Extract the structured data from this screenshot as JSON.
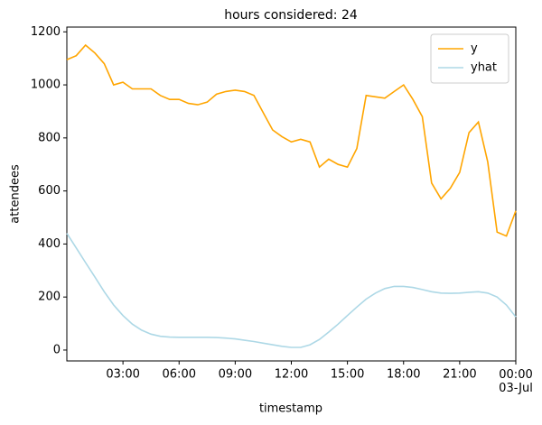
{
  "chart_data": {
    "type": "line",
    "title": "hours considered: 24",
    "x_label": "timestamp",
    "y_label": "attendees",
    "x": [
      0,
      0.5,
      1,
      1.5,
      2,
      2.5,
      3,
      3.5,
      4,
      4.5,
      5,
      5.5,
      6,
      6.5,
      7,
      7.5,
      8,
      8.5,
      9,
      9.5,
      10,
      10.5,
      11,
      11.5,
      12,
      12.5,
      13,
      13.5,
      14,
      14.5,
      15,
      15.5,
      16,
      16.5,
      17,
      17.5,
      18,
      18.5,
      19,
      19.5,
      20,
      20.5,
      21,
      21.5,
      22,
      22.5,
      23,
      23.5,
      24
    ],
    "series": [
      {
        "name": "y",
        "color": "#ffa500",
        "values": [
          1095,
          1110,
          1150,
          1120,
          1080,
          1000,
          1010,
          985,
          985,
          985,
          960,
          945,
          945,
          930,
          925,
          935,
          965,
          975,
          980,
          975,
          960,
          895,
          830,
          805,
          785,
          795,
          785,
          690,
          720,
          700,
          690,
          760,
          960,
          955,
          950,
          975,
          1000,
          945,
          880,
          630,
          570,
          610,
          670,
          820,
          860,
          710,
          445,
          430,
          525
        ]
      },
      {
        "name": "yhat",
        "color": "#add8e6",
        "values": [
          440,
          385,
          330,
          275,
          220,
          170,
          130,
          98,
          75,
          60,
          52,
          49,
          48,
          48,
          48,
          48,
          47,
          45,
          42,
          37,
          32,
          26,
          20,
          14,
          10,
          10,
          20,
          40,
          68,
          98,
          130,
          162,
          192,
          215,
          232,
          240,
          240,
          236,
          228,
          220,
          215,
          214,
          215,
          218,
          220,
          215,
          200,
          170,
          125
        ]
      }
    ],
    "xlim": [
      0,
      24
    ],
    "xticks": [
      {
        "value": 3,
        "label": "03:00"
      },
      {
        "value": 6,
        "label": "06:00"
      },
      {
        "value": 9,
        "label": "09:00"
      },
      {
        "value": 12,
        "label": "12:00"
      },
      {
        "value": 15,
        "label": "15:00"
      },
      {
        "value": 18,
        "label": "18:00"
      },
      {
        "value": 21,
        "label": "21:00"
      },
      {
        "value": 24,
        "label": "00:00\n03-Jul"
      }
    ],
    "ylim": [
      -41,
      1218
    ],
    "yticks": [
      0,
      200,
      400,
      600,
      800,
      1000,
      1200
    ],
    "legend": "upper right",
    "grid": false
  }
}
